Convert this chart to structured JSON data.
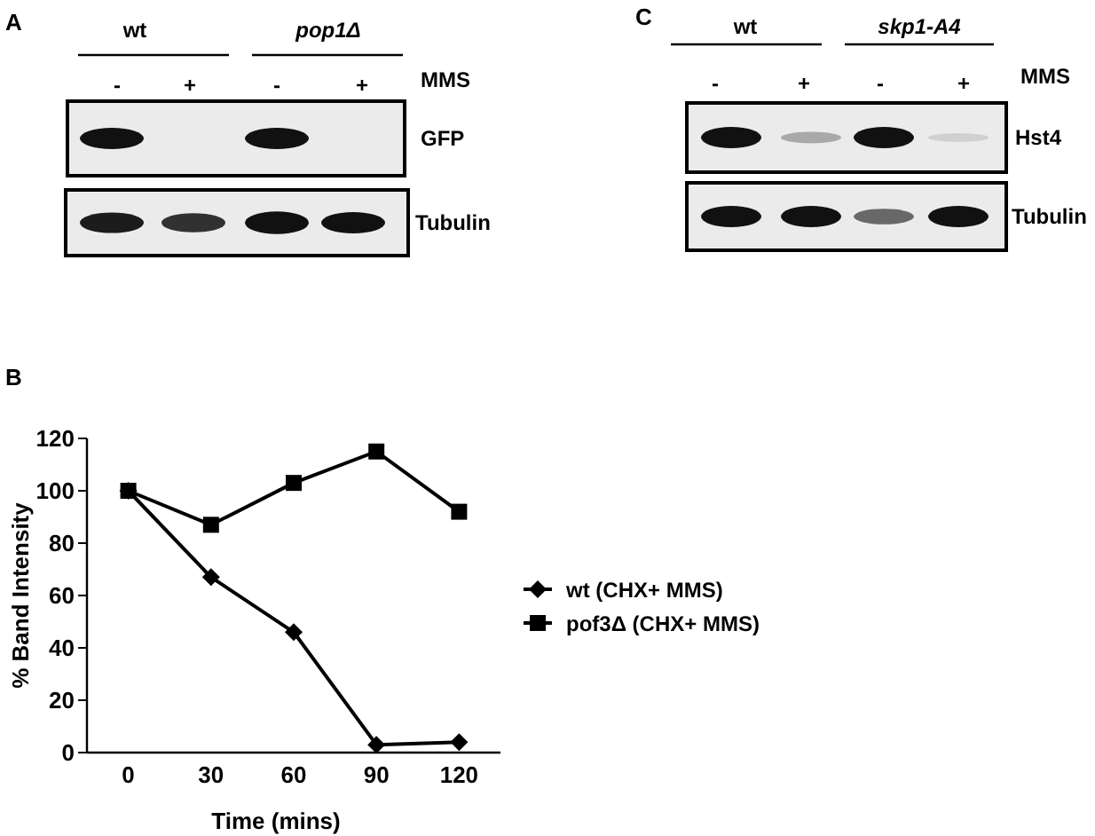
{
  "chart_data": [
    {
      "type": "other",
      "title": "A",
      "categories": [
        "-",
        "+",
        "-",
        "+"
      ],
      "annotations": [
        "wt",
        "pop1Δ",
        "MMS",
        "GFP",
        "Tubulin"
      ]
    },
    {
      "type": "other",
      "title": "C",
      "categories": [
        "-",
        "+",
        "-",
        "+"
      ],
      "annotations": [
        "wt",
        "skp1-A4",
        "MMS",
        "Hst4",
        "Tubulin"
      ]
    },
    {
      "type": "line",
      "title": "B",
      "categories": [
        "0",
        "30",
        "60",
        "90",
        "120"
      ],
      "xlabel": "Time (mins)",
      "ylabel": "% Band Intensity",
      "ylim": [
        0,
        120
      ],
      "yticks": [
        0,
        20,
        40,
        60,
        80,
        100,
        120
      ],
      "legend": "right",
      "series": [
        {
          "name": "wt (CHX+ MMS)",
          "color": "#000000",
          "marker": "diamond",
          "values": [
            100,
            67,
            46,
            3,
            4
          ]
        },
        {
          "name": "pof3Δ (CHX+ MMS)",
          "color": "#000000",
          "marker": "square",
          "values": [
            100,
            87,
            103,
            115,
            92
          ]
        }
      ]
    }
  ]
}
